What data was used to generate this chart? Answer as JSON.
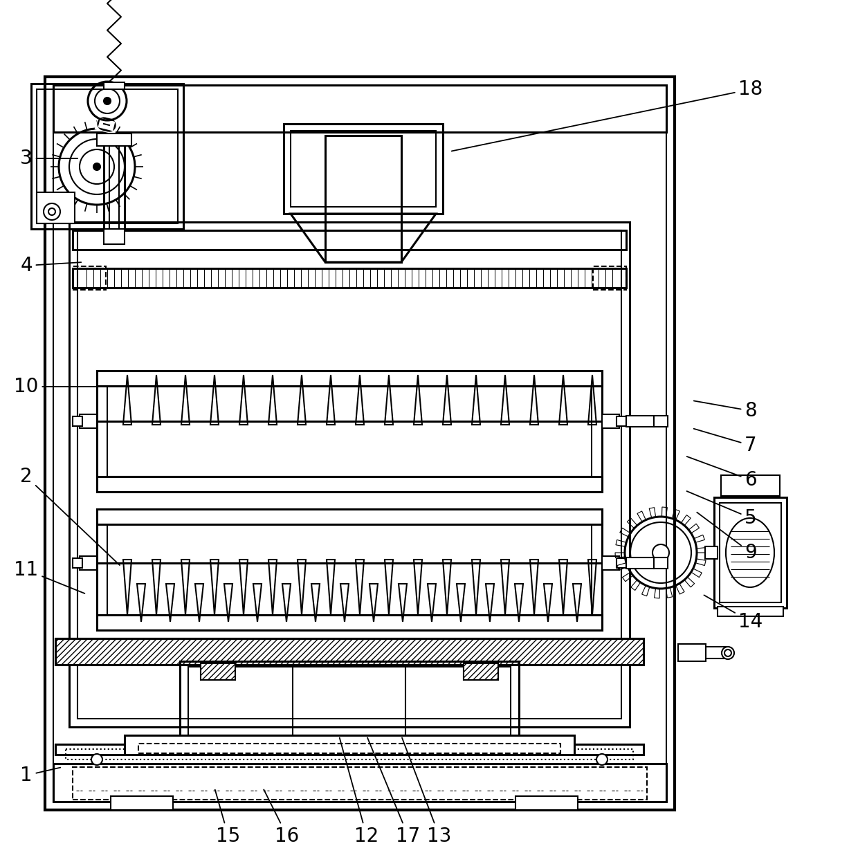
{
  "bg_color": "#ffffff",
  "line_color": "#000000",
  "lw": 1.5,
  "lw2": 2.2,
  "lw3": 3.0,
  "fig_width": 12.4,
  "fig_height": 12.39
}
